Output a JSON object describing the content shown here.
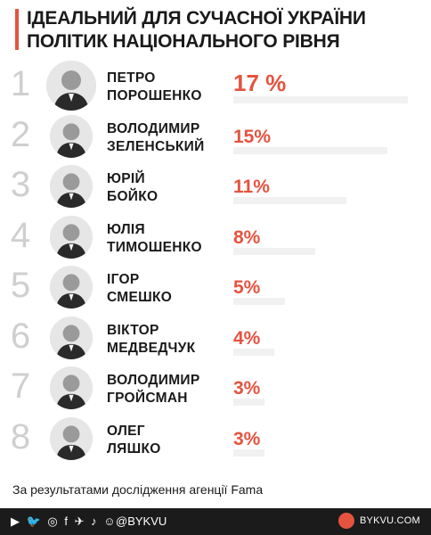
{
  "header": {
    "title": "ІДЕАЛЬНИЙ ДЛЯ СУЧАСНОЇ УКРАЇНИ ПОЛІТИК НАЦІОНАЛЬНОГО РІВНЯ"
  },
  "chart_data": {
    "type": "bar",
    "title": "ІДЕАЛЬНИЙ ДЛЯ СУЧАСНОЇ УКРАЇНИ ПОЛІТИК НАЦІОНАЛЬНОГО РІВНЯ",
    "categories": [
      "ПЕТРО ПОРОШЕНКО",
      "ВОЛОДИМИР ЗЕЛЕНСЬКИЙ",
      "ЮРІЙ БОЙКО",
      "ЮЛІЯ ТИМОШЕНКО",
      "ІГОР СМЕШКО",
      "ВІКТОР МЕДВЕДЧУК",
      "ВОЛОДИМИР ГРОЙСМАН",
      "ОЛЕГ ЛЯШКО"
    ],
    "values": [
      17,
      15,
      11,
      8,
      5,
      4,
      3,
      3
    ],
    "value_labels": [
      "17 %",
      "15%",
      "11%",
      "8%",
      "5%",
      "4%",
      "3%",
      "3%"
    ],
    "xlabel": "",
    "ylabel": "",
    "colors": {
      "label": "#e5533f",
      "track": "#f1f1f1"
    }
  },
  "rows": [
    {
      "rank": "1",
      "first": "ПЕТРО",
      "last": "ПОРОШЕНКО",
      "pct": "17 %",
      "value": 17
    },
    {
      "rank": "2",
      "first": "ВОЛОДИМИР",
      "last": "ЗЕЛЕНСЬКИЙ",
      "pct": "15%",
      "value": 15
    },
    {
      "rank": "3",
      "first": "ЮРІЙ",
      "last": "БОЙКО",
      "pct": "11%",
      "value": 11
    },
    {
      "rank": "4",
      "first": "ЮЛІЯ",
      "last": "ТИМОШЕНКО",
      "pct": "8%",
      "value": 8
    },
    {
      "rank": "5",
      "first": "ІГОР",
      "last": "СМЕШКО",
      "pct": "5%",
      "value": 5
    },
    {
      "rank": "6",
      "first": "ВІКТОР",
      "last": "МЕДВЕДЧУК",
      "pct": "4%",
      "value": 4
    },
    {
      "rank": "7",
      "first": "ВОЛОДИМИР",
      "last": "ГРОЙСМАН",
      "pct": "3%",
      "value": 3
    },
    {
      "rank": "8",
      "first": "ОЛЕГ",
      "last": "ЛЯШКО",
      "pct": "3%",
      "value": 3
    }
  ],
  "footnote": "За результатами дослідження агенції Fama",
  "footer": {
    "icons_text": "▶ 🐦 ◎ f ✈ ♪ ☺",
    "icon_names": [
      "youtube-icon",
      "twitter-icon",
      "instagram-icon",
      "facebook-icon",
      "telegram-icon",
      "tiktok-icon",
      "reddit-icon"
    ],
    "handle": "@BYKVU",
    "site": "BYKVU.COM"
  }
}
